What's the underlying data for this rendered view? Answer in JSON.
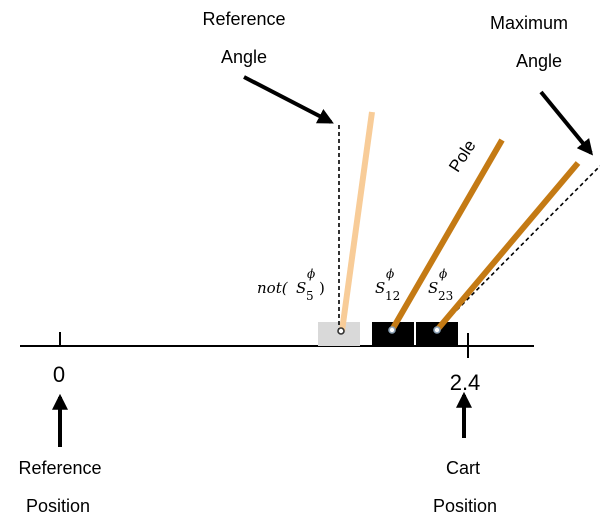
{
  "labels": {
    "reference_angle": [
      "Reference",
      "Angle"
    ],
    "maximum_angle": [
      "Maximum",
      "Angle"
    ],
    "pole": "Pole",
    "reference_position": [
      "Reference",
      "Position"
    ],
    "cart_position": [
      "Cart",
      "Position"
    ]
  },
  "ticks": {
    "zero": "0",
    "max": "2.4"
  },
  "states": {
    "not_prefix": "not(",
    "not_suffix": ")",
    "symbol": "S",
    "superscript": "ϕ",
    "s5_index": "5",
    "s12_index": "12",
    "s23_index": "23"
  },
  "colors": {
    "pole": "#c47a14",
    "reference_pole": "#f8cc98",
    "cart": "#000000",
    "reference_cart": "#d9d9d9",
    "track": "#000000"
  }
}
